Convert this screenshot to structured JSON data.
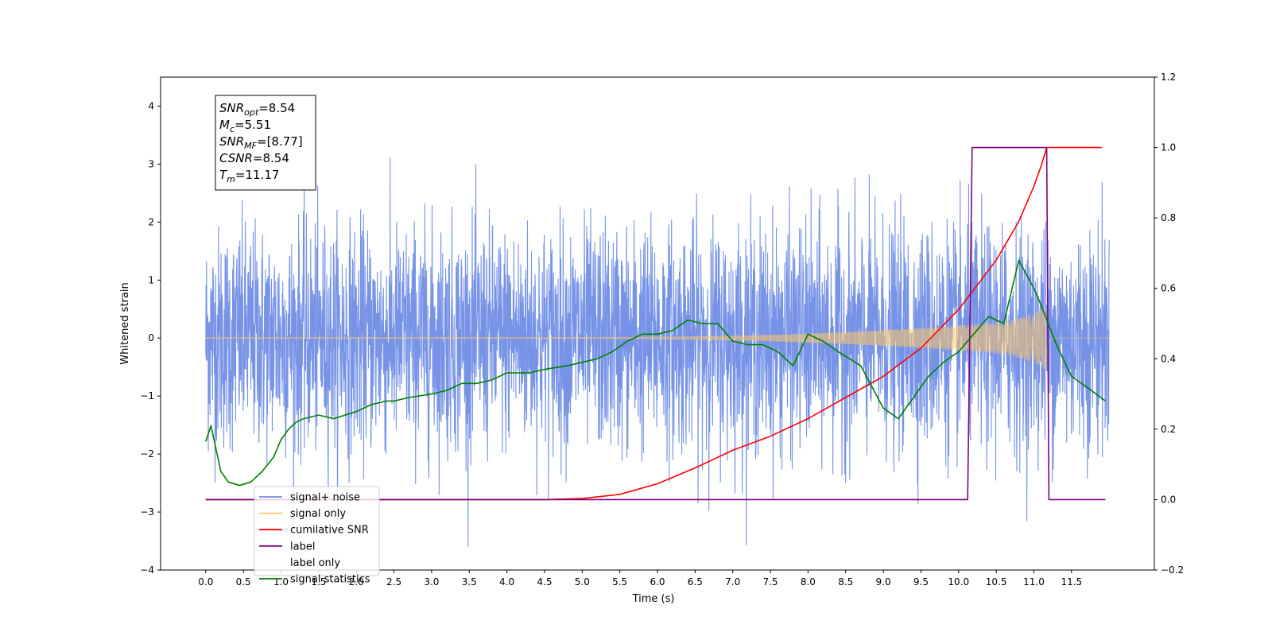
{
  "chart_data": {
    "type": "line",
    "xlabel": "Time (s)",
    "ylabel": "Whitened strain",
    "xlim": [
      -0.6,
      12.6
    ],
    "ylim": [
      -4,
      4.5
    ],
    "y2lim": [
      -0.2,
      1.2
    ],
    "x_ticks": [
      "0.0",
      "0.5",
      "1.0",
      "1.5",
      "2.0",
      "2.5",
      "3.0",
      "3.5",
      "4.0",
      "4.5",
      "5.0",
      "5.5",
      "6.0",
      "6.5",
      "7.0",
      "7.5",
      "8.0",
      "8.5",
      "9.0",
      "9.5",
      "10.0",
      "10.5",
      "11.0",
      "11.5"
    ],
    "y_ticks": [
      "4",
      "3",
      "2",
      "1",
      "0",
      "−1",
      "−2",
      "−3",
      "−4"
    ],
    "y2_ticks": [
      "1.2",
      "1.0",
      "0.8",
      "0.6",
      "0.4",
      "0.2",
      "0.0",
      "−0.2"
    ],
    "annotation_box": [
      {
        "base": "SNR",
        "sub": "opt",
        "value": "=8.54"
      },
      {
        "base": "M",
        "sub": "c",
        "value": "=5.51"
      },
      {
        "base": "SNR",
        "sub": "MF",
        "value": "=[8.77]"
      },
      {
        "base": "CSNR",
        "sub": "",
        "value": "=8.54"
      },
      {
        "base": "T",
        "sub": "m",
        "value": "=11.17"
      }
    ],
    "legend_position": "lower-left",
    "series": [
      {
        "name": "signal+ noise",
        "color": "#6f8de6",
        "axis": "left",
        "description": "white noise with std approx 1.0 from t=0 to t=12",
        "t_start": 0.0,
        "t_end": 12.0,
        "noise_std": 1.0
      },
      {
        "name": "signal only",
        "color": "#ffc866",
        "axis": "left",
        "description": "chirp, amplitude growing until merger",
        "t_start": 0.0,
        "t_end": 12.0,
        "merger_time": 11.17,
        "peak_amplitude": 0.55
      },
      {
        "name": "cumilative SNR",
        "color": "#ff0000",
        "axis": "right",
        "x": [
          0.0,
          4.5,
          5.0,
          5.5,
          6.0,
          6.5,
          7.0,
          7.5,
          8.0,
          8.5,
          9.0,
          9.5,
          10.0,
          10.5,
          10.8,
          11.0,
          11.1,
          11.17,
          11.2,
          11.5,
          11.9
        ],
        "y": [
          0.0,
          0.0,
          0.003,
          0.015,
          0.045,
          0.09,
          0.14,
          0.18,
          0.23,
          0.29,
          0.35,
          0.43,
          0.54,
          0.68,
          0.79,
          0.89,
          0.95,
          1.0,
          1.0,
          1.0,
          1.0
        ]
      },
      {
        "name": "label",
        "color": "#800080",
        "axis": "right",
        "x": [
          0.0,
          10.12,
          10.18,
          11.17,
          11.2,
          11.95
        ],
        "y": [
          0.0,
          0.0,
          1.0,
          1.0,
          0.0,
          0.0
        ]
      },
      {
        "name": "label only",
        "color": "#ffffff",
        "axis": "right",
        "x": [],
        "y": []
      },
      {
        "name": "signal statistics",
        "color": "#008000",
        "axis": "right",
        "x": [
          0.0,
          0.07,
          0.2,
          0.3,
          0.45,
          0.6,
          0.75,
          0.9,
          1.0,
          1.1,
          1.2,
          1.3,
          1.5,
          1.7,
          2.0,
          2.2,
          2.4,
          2.5,
          2.7,
          3.0,
          3.2,
          3.4,
          3.6,
          3.8,
          4.0,
          4.3,
          4.5,
          4.8,
          5.0,
          5.2,
          5.4,
          5.6,
          5.8,
          6.0,
          6.2,
          6.4,
          6.6,
          6.8,
          7.0,
          7.2,
          7.4,
          7.6,
          7.8,
          8.0,
          8.2,
          8.4,
          8.7,
          9.0,
          9.2,
          9.4,
          9.6,
          9.8,
          10.0,
          10.2,
          10.4,
          10.6,
          10.8,
          11.0,
          11.1,
          11.3,
          11.5,
          11.7,
          11.95
        ],
        "y": [
          0.165,
          0.21,
          0.08,
          0.05,
          0.04,
          0.05,
          0.08,
          0.12,
          0.17,
          0.2,
          0.22,
          0.23,
          0.24,
          0.23,
          0.25,
          0.27,
          0.28,
          0.28,
          0.29,
          0.3,
          0.31,
          0.33,
          0.33,
          0.34,
          0.36,
          0.36,
          0.37,
          0.38,
          0.39,
          0.4,
          0.42,
          0.45,
          0.47,
          0.47,
          0.48,
          0.51,
          0.5,
          0.5,
          0.45,
          0.44,
          0.44,
          0.42,
          0.38,
          0.47,
          0.45,
          0.42,
          0.38,
          0.26,
          0.23,
          0.29,
          0.35,
          0.39,
          0.42,
          0.47,
          0.52,
          0.5,
          0.68,
          0.6,
          0.55,
          0.44,
          0.35,
          0.32,
          0.28
        ]
      }
    ]
  }
}
